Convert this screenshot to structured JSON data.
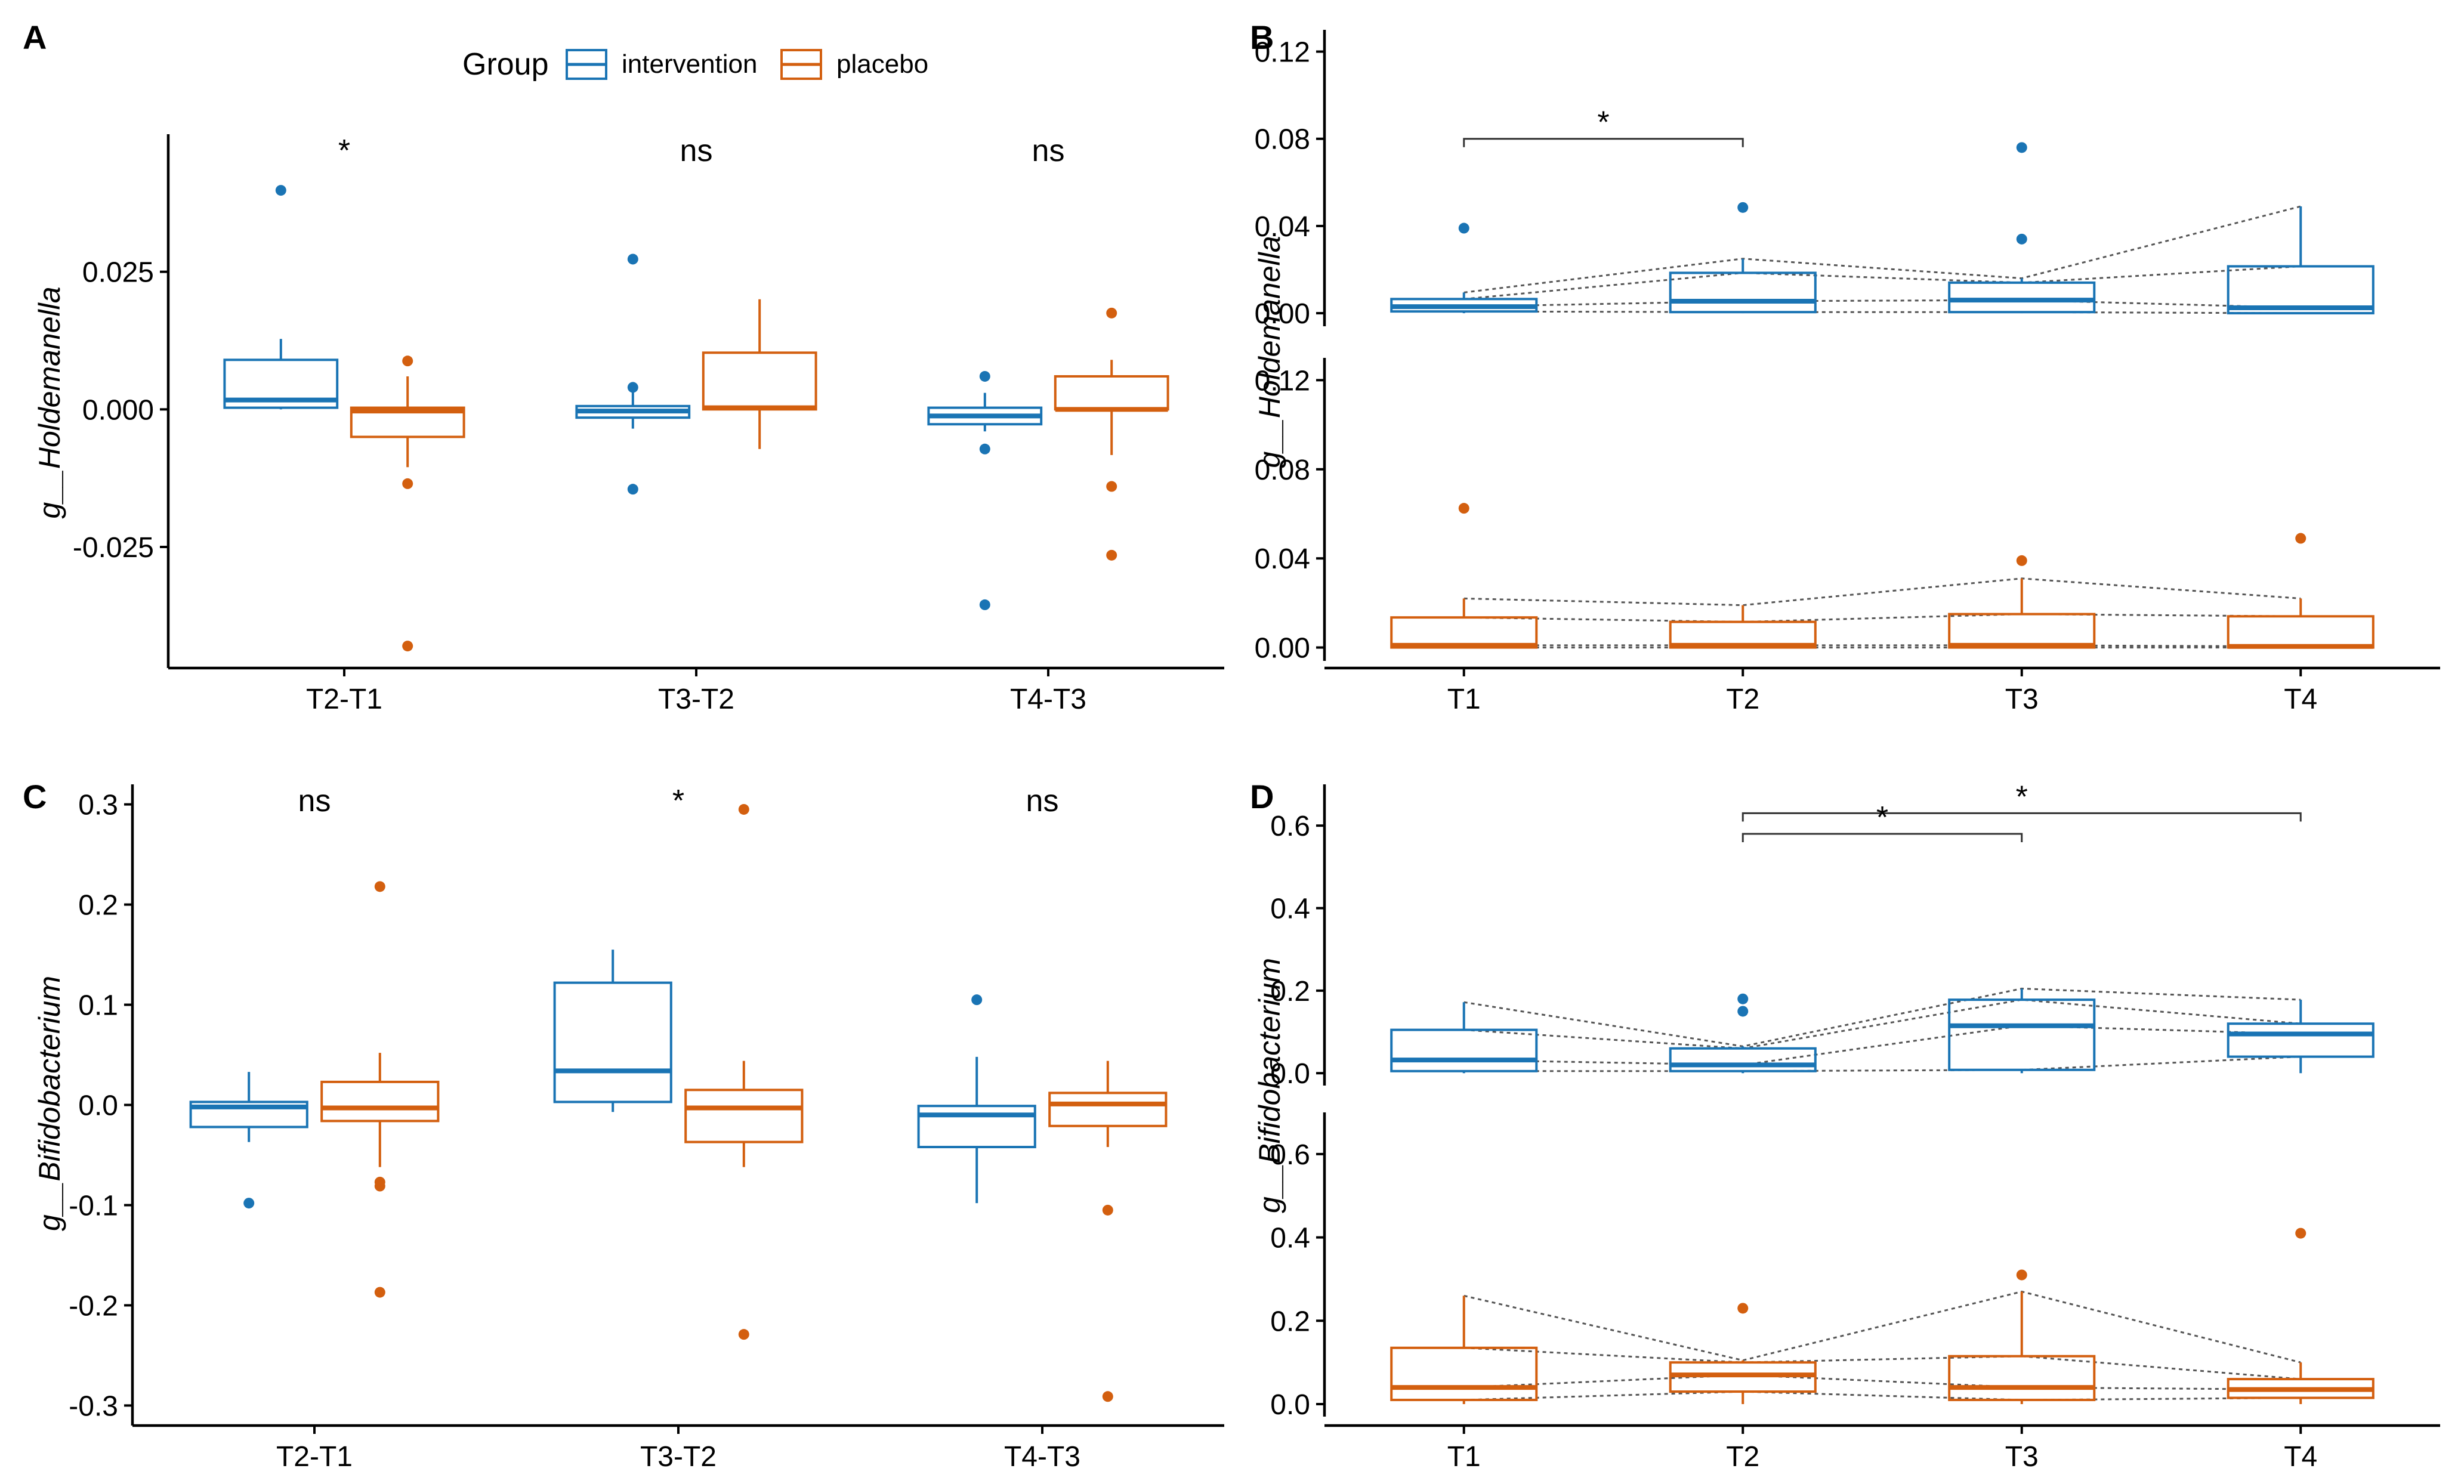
{
  "colors": {
    "intervention": "#1a74b4",
    "placebo": "#d35f0f"
  },
  "legend": {
    "title": "Group",
    "items": [
      {
        "label": "intervention",
        "color": "#1a74b4"
      },
      {
        "label": "placebo",
        "color": "#d35f0f"
      }
    ]
  },
  "chart_data": [
    {
      "panel": "A",
      "type": "box",
      "ylabel": "g__Holdemanella",
      "ylim": [
        -0.047,
        0.05
      ],
      "yticks": [
        -0.025,
        0.0,
        0.025
      ],
      "ytick_labels": [
        "-0.025",
        "0.000",
        "0.025"
      ],
      "categories": [
        "T2-T1",
        "T3-T2",
        "T4-T3"
      ],
      "significance": [
        "*",
        "ns",
        "ns"
      ],
      "series": [
        {
          "name": "intervention",
          "boxes": [
            {
              "min": 0.0,
              "q1": 0.0003,
              "median": 0.0017,
              "q3": 0.009,
              "max": 0.0128,
              "outliers": [
                0.0398
              ]
            },
            {
              "min": -0.0035,
              "q1": -0.0015,
              "median": -0.0003,
              "q3": 0.0006,
              "max": 0.0045,
              "outliers": [
                0.004,
                0.0273,
                -0.0145
              ]
            },
            {
              "min": -0.004,
              "q1": -0.0027,
              "median": -0.0012,
              "q3": 0.0003,
              "max": 0.003,
              "outliers": [
                0.006,
                -0.0072,
                -0.0355
              ]
            }
          ]
        },
        {
          "name": "placebo",
          "boxes": [
            {
              "min": -0.0105,
              "q1": -0.005,
              "median": -0.0003,
              "q3": 0.0003,
              "max": 0.006,
              "outliers": [
                0.0088,
                -0.0135,
                -0.043
              ]
            },
            {
              "min": -0.0072,
              "q1": 0.0,
              "median": 0.0003,
              "q3": 0.0103,
              "max": 0.02,
              "outliers": []
            },
            {
              "min": -0.0083,
              "q1": 0.0,
              "median": 0.0,
              "q3": 0.006,
              "max": 0.009,
              "outliers": [
                0.0175,
                -0.014,
                -0.0265
              ]
            }
          ]
        }
      ]
    },
    {
      "panel": "B",
      "type": "box",
      "ylabel": "g__Holdemanella",
      "ylim": [
        -0.006,
        0.13
      ],
      "yticks": [
        0.0,
        0.04,
        0.08,
        0.12
      ],
      "ytick_labels": [
        "0.00",
        "0.04",
        "0.08",
        "0.12"
      ],
      "categories": [
        "T1",
        "T2",
        "T3",
        "T4"
      ],
      "brackets": [
        {
          "from": "T1",
          "to": "T2",
          "label": "*",
          "y": 0.08
        }
      ],
      "series": [
        {
          "name": "intervention",
          "boxes": [
            {
              "min": 0.0,
              "q1": 0.0008,
              "median": 0.003,
              "q3": 0.0065,
              "max": 0.0095,
              "outliers": [
                0.039
              ]
            },
            {
              "min": 0.0,
              "q1": 0.0005,
              "median": 0.0055,
              "q3": 0.0185,
              "max": 0.025,
              "outliers": [
                0.0485
              ]
            },
            {
              "min": 0.0,
              "q1": 0.0005,
              "median": 0.006,
              "q3": 0.014,
              "max": 0.016,
              "outliers": [
                0.034,
                0.076
              ]
            },
            {
              "min": 0.0,
              "q1": 0.0,
              "median": 0.0025,
              "q3": 0.0215,
              "max": 0.049,
              "outliers": []
            }
          ]
        },
        {
          "name": "placebo",
          "boxes": [
            {
              "min": 0.0,
              "q1": 0.0,
              "median": 0.001,
              "q3": 0.0135,
              "max": 0.022,
              "outliers": [
                0.0625
              ]
            },
            {
              "min": 0.0,
              "q1": 0.0,
              "median": 0.001,
              "q3": 0.0115,
              "max": 0.019,
              "outliers": []
            },
            {
              "min": 0.0,
              "q1": 0.0,
              "median": 0.001,
              "q3": 0.015,
              "max": 0.031,
              "outliers": [
                0.039
              ]
            },
            {
              "min": 0.0,
              "q1": 0.0,
              "median": 0.0005,
              "q3": 0.014,
              "max": 0.022,
              "outliers": [
                0.049
              ]
            }
          ]
        }
      ]
    },
    {
      "panel": "C",
      "type": "box",
      "ylabel": "g__Bifidobacterium",
      "ylim": [
        -0.32,
        0.32
      ],
      "yticks": [
        -0.3,
        -0.2,
        -0.1,
        0.0,
        0.1,
        0.2,
        0.3
      ],
      "ytick_labels": [
        "-0.3",
        "-0.2",
        "-0.1",
        "0.0",
        "0.1",
        "0.2",
        "0.3"
      ],
      "categories": [
        "T2-T1",
        "T3-T2",
        "T4-T3"
      ],
      "significance": [
        "ns",
        "*",
        "ns"
      ],
      "series": [
        {
          "name": "intervention",
          "boxes": [
            {
              "min": -0.037,
              "q1": -0.022,
              "median": -0.002,
              "q3": 0.003,
              "max": 0.033,
              "outliers": [
                -0.098
              ]
            },
            {
              "min": -0.007,
              "q1": 0.003,
              "median": 0.034,
              "q3": 0.122,
              "max": 0.155,
              "outliers": []
            },
            {
              "min": -0.098,
              "q1": -0.042,
              "median": -0.01,
              "q3": -0.001,
              "max": 0.048,
              "outliers": [
                0.105
              ]
            }
          ]
        },
        {
          "name": "placebo",
          "boxes": [
            {
              "min": -0.062,
              "q1": -0.016,
              "median": -0.003,
              "q3": 0.023,
              "max": 0.052,
              "outliers": [
                0.218,
                -0.077,
                -0.081,
                -0.187
              ]
            },
            {
              "min": -0.062,
              "q1": -0.037,
              "median": -0.003,
              "q3": 0.015,
              "max": 0.044,
              "outliers": [
                0.295,
                -0.229
              ]
            },
            {
              "min": -0.042,
              "q1": -0.021,
              "median": 0.001,
              "q3": 0.012,
              "max": 0.044,
              "outliers": [
                -0.105,
                -0.291
              ]
            }
          ]
        }
      ]
    },
    {
      "panel": "D",
      "type": "box",
      "ylabel": "g__Bifidobacterium",
      "ylim": [
        -0.03,
        0.7
      ],
      "yticks": [
        0.0,
        0.2,
        0.4,
        0.6
      ],
      "ytick_labels": [
        "0.0",
        "0.2",
        "0.4",
        "0.6"
      ],
      "categories": [
        "T1",
        "T2",
        "T3",
        "T4"
      ],
      "brackets": [
        {
          "from": "T2",
          "to": "T4",
          "label": "*",
          "y": 0.63
        },
        {
          "from": "T2",
          "to": "T3",
          "label": "*",
          "y": 0.58
        }
      ],
      "series": [
        {
          "name": "intervention",
          "boxes": [
            {
              "min": 0.0,
              "q1": 0.005,
              "median": 0.032,
              "q3": 0.105,
              "max": 0.172,
              "outliers": []
            },
            {
              "min": 0.0,
              "q1": 0.005,
              "median": 0.02,
              "q3": 0.06,
              "max": 0.065,
              "outliers": [
                0.18,
                0.15
              ]
            },
            {
              "min": 0.0,
              "q1": 0.008,
              "median": 0.115,
              "q3": 0.178,
              "max": 0.205,
              "outliers": []
            },
            {
              "min": 0.0,
              "q1": 0.04,
              "median": 0.095,
              "q3": 0.12,
              "max": 0.178,
              "outliers": []
            }
          ]
        },
        {
          "name": "placebo",
          "boxes": [
            {
              "min": 0.0,
              "q1": 0.01,
              "median": 0.04,
              "q3": 0.135,
              "max": 0.26,
              "outliers": []
            },
            {
              "min": 0.0,
              "q1": 0.03,
              "median": 0.07,
              "q3": 0.1,
              "max": 0.105,
              "outliers": [
                0.23
              ]
            },
            {
              "min": 0.0,
              "q1": 0.01,
              "median": 0.04,
              "q3": 0.115,
              "max": 0.27,
              "outliers": [
                0.31
              ]
            },
            {
              "min": 0.0,
              "q1": 0.015,
              "median": 0.035,
              "q3": 0.06,
              "max": 0.1,
              "outliers": [
                0.41
              ]
            }
          ]
        }
      ]
    }
  ]
}
